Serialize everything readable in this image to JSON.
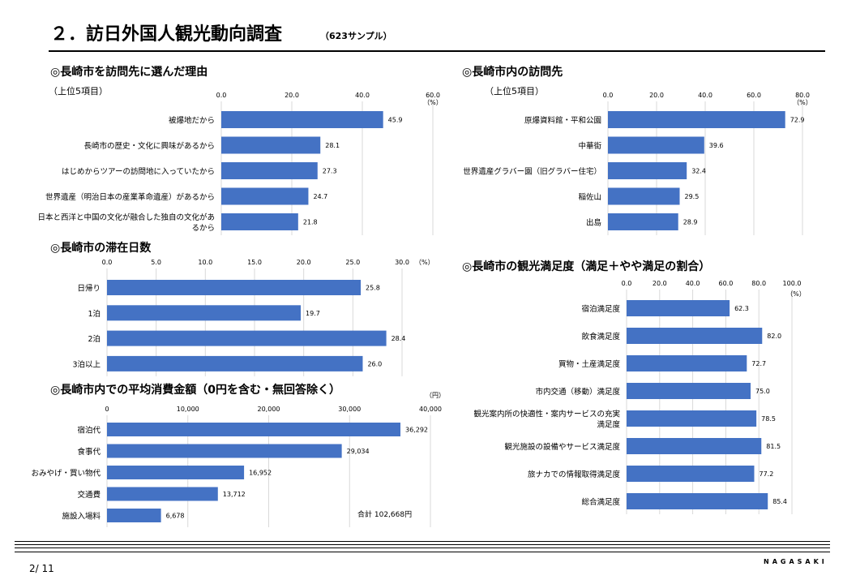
{
  "page": {
    "title": "２．訪日外国人観光動向調査",
    "subtitle": "（623サンプル）",
    "page_number": "2/ 11",
    "brand": "NAGASAKI"
  },
  "colors": {
    "bar": "#4472c4",
    "grid": "#d9d9d9",
    "text": "#000000"
  },
  "chart_data": [
    {
      "id": "reasons",
      "type": "bar",
      "orientation": "horizontal",
      "title": "◎長崎市を訪問先に選んだ理由",
      "subtitle": "（上位5項目）",
      "unit": "（%）",
      "categories": [
        "被爆地だから",
        "長崎市の歴史・文化に興味があるから",
        "はじめからツアーの訪問地に入っていたから",
        "世界遺産（明治日本の産業革命遺産）があるから",
        "日本と西洋と中国の文化が融合した独自の文化があるから"
      ],
      "category_lines": [
        [
          "被爆地だから"
        ],
        [
          "長崎市の歴史・文化に興味があるから"
        ],
        [
          "はじめからツアーの訪問地に入っていたから"
        ],
        [
          "世界遺産（明治日本の産業革命遺産）があるから"
        ],
        [
          "日本と西洋と中国の文化が融合した独自の文化があ",
          "るから"
        ]
      ],
      "values": [
        45.9,
        28.1,
        27.3,
        24.7,
        21.8
      ],
      "value_labels": [
        "45.9",
        "28.1",
        "27.3",
        "24.7",
        "21.8"
      ],
      "ticks": [
        "0.0",
        "20.0",
        "40.0",
        "60.0"
      ],
      "xlim": [
        0,
        60
      ],
      "grid": true
    },
    {
      "id": "destinations",
      "type": "bar",
      "orientation": "horizontal",
      "title": "◎長崎市内の訪問先",
      "subtitle": "（上位5項目）",
      "unit": "（%）",
      "categories": [
        "原爆資料館・平和公園",
        "中華街",
        "世界遺産グラバー園（旧グラバー住宅）",
        "稲佐山",
        "出島"
      ],
      "category_lines": [
        [
          "原爆資料館・平和公園"
        ],
        [
          "中華街"
        ],
        [
          "世界遺産グラバー園（旧グラバー住宅）"
        ],
        [
          "稲佐山"
        ],
        [
          "出島"
        ]
      ],
      "values": [
        72.9,
        39.6,
        32.4,
        29.5,
        28.9
      ],
      "value_labels": [
        "72.9",
        "39.6",
        "32.4",
        "29.5",
        "28.9"
      ],
      "ticks": [
        "0.0",
        "20.0",
        "40.0",
        "60.0",
        "80.0"
      ],
      "xlim": [
        0,
        80
      ],
      "grid": true
    },
    {
      "id": "stay",
      "type": "bar",
      "orientation": "horizontal",
      "title": "◎長崎市の滞在日数",
      "subtitle": "",
      "unit": "（%）",
      "categories": [
        "日帰り",
        "1泊",
        "2泊",
        "3泊以上"
      ],
      "category_lines": [
        [
          "日帰り"
        ],
        [
          "1泊"
        ],
        [
          "2泊"
        ],
        [
          "3泊以上"
        ]
      ],
      "values": [
        25.8,
        19.7,
        28.4,
        26.0
      ],
      "value_labels": [
        "25.8",
        "19.7",
        "28.4",
        "26.0"
      ],
      "ticks": [
        "0.0",
        "5.0",
        "10.0",
        "15.0",
        "20.0",
        "25.0",
        "30.0"
      ],
      "xlim": [
        0,
        30
      ],
      "grid": true
    },
    {
      "id": "satisfaction",
      "type": "bar",
      "orientation": "horizontal",
      "title": "◎長崎市の観光満足度（満足＋やや満足の割合）",
      "subtitle": "",
      "unit": "（%）",
      "categories": [
        "宿泊満足度",
        "飲食満足度",
        "買物・土産満足度",
        "市内交通（移動）満足度",
        "観光案内所の快適性・案内サービスの充実満足度",
        "観光施設の設備やサービス満足度",
        "旅ナカでの情報取得満足度",
        "総合満足度"
      ],
      "category_lines": [
        [
          "宿泊満足度"
        ],
        [
          "飲食満足度"
        ],
        [
          "買物・土産満足度"
        ],
        [
          "市内交通（移動）満足度"
        ],
        [
          "観光案内所の快適性・案内サービスの充実",
          "満足度"
        ],
        [
          "観光施設の設備やサービス満足度"
        ],
        [
          "旅ナカでの情報取得満足度"
        ],
        [
          "総合満足度"
        ]
      ],
      "values": [
        62.3,
        82.0,
        72.7,
        75.0,
        78.5,
        81.5,
        77.2,
        85.4
      ],
      "value_labels": [
        "62.3",
        "82.0",
        "72.7",
        "75.0",
        "78.5",
        "81.5",
        "77.2",
        "85.4"
      ],
      "ticks": [
        "0.0",
        "20.0",
        "40.0",
        "60.0",
        "80.0",
        "100.0"
      ],
      "xlim": [
        0,
        100
      ],
      "grid": true
    },
    {
      "id": "spending",
      "type": "bar",
      "orientation": "horizontal",
      "title": "◎長崎市内での平均消費金額（0円を含む・無回答除く）",
      "subtitle": "",
      "unit": "（円）",
      "categories": [
        "宿泊代",
        "食事代",
        "おみやげ・買い物代",
        "交通費",
        "施設入場料"
      ],
      "category_lines": [
        [
          "宿泊代"
        ],
        [
          "食事代"
        ],
        [
          "おみやげ・買い物代"
        ],
        [
          "交通費"
        ],
        [
          "施設入場料"
        ]
      ],
      "values": [
        36292,
        29034,
        16952,
        13712,
        6678
      ],
      "value_labels": [
        "36,292",
        "29,034",
        "16,952",
        "13,712",
        "6,678"
      ],
      "ticks": [
        "0",
        "10,000",
        "20,000",
        "30,000",
        "40,000"
      ],
      "xlim": [
        0,
        40000
      ],
      "grid": true,
      "annotation": "合計 102,668円"
    }
  ]
}
